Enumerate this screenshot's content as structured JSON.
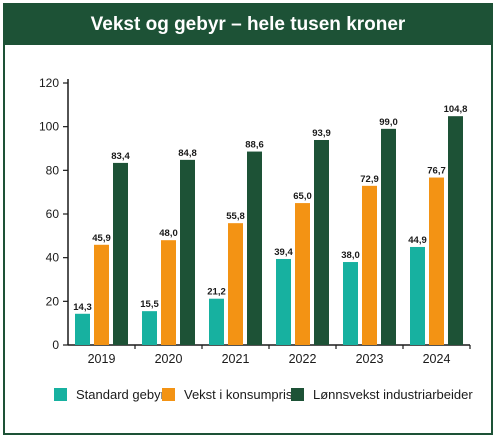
{
  "chart_data": {
    "type": "bar",
    "title": "Vekst og gebyr – hele tusen kroner",
    "categories": [
      "2019",
      "2020",
      "2021",
      "2022",
      "2023",
      "2024"
    ],
    "series": [
      {
        "name": "Standard gebyr",
        "color": "#17b1a0",
        "values": [
          14.3,
          15.5,
          21.2,
          39.4,
          38.0,
          44.9
        ],
        "labels": [
          "14,3",
          "15,5",
          "21,2",
          "39,4",
          "38,0",
          "44,9"
        ]
      },
      {
        "name": "Vekst i konsumpris",
        "color": "#f39314",
        "values": [
          45.9,
          48.0,
          55.8,
          65.0,
          72.9,
          76.7
        ],
        "labels": [
          "45,9",
          "48,0",
          "55,8",
          "65,0",
          "72,9",
          "76,7"
        ]
      },
      {
        "name": "Lønnsvekst industriarbeider",
        "color": "#1d5236",
        "values": [
          83.4,
          84.8,
          88.6,
          93.9,
          99.0,
          104.8
        ],
        "labels": [
          "83,4",
          "84,8",
          "88,6",
          "93,9",
          "99,0",
          "104,8"
        ]
      }
    ],
    "ylim": [
      0,
      120
    ],
    "yticks": [
      "0",
      "20",
      "40",
      "60",
      "80",
      "100",
      "120"
    ],
    "grid": false,
    "legend": "bottom",
    "xlabel": "",
    "ylabel": ""
  },
  "colors": {
    "frame": "#1d5236",
    "axis": "#1a1a1a"
  }
}
